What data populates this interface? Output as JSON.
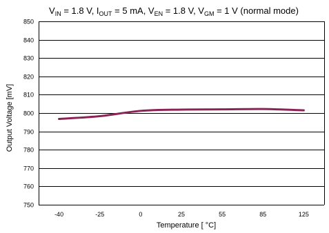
{
  "chart_data": {
    "type": "line",
    "title": {
      "parts": [
        {
          "text": "V",
          "sub": false
        },
        {
          "text": "IN",
          "sub": true
        },
        {
          "text": " = 1.8 V, I",
          "sub": false
        },
        {
          "text": "OUT",
          "sub": true
        },
        {
          "text": " = 5 mA, V",
          "sub": false
        },
        {
          "text": "EN",
          "sub": true
        },
        {
          "text": " = 1.8 V, V",
          "sub": false
        },
        {
          "text": "GM",
          "sub": true
        },
        {
          "text": " =  1 V (normal mode)",
          "sub": false
        }
      ]
    },
    "xlabel": "Temperature [ °C]",
    "ylabel": "Output Voltage [mV]",
    "categories": [
      "-40",
      "-25",
      "0",
      "25",
      "55",
      "85",
      "125"
    ],
    "ylim": [
      750,
      850
    ],
    "yticks": [
      750,
      760,
      770,
      780,
      790,
      800,
      810,
      820,
      830,
      840,
      850
    ],
    "grid": true,
    "series": [
      {
        "color": "#8b2356",
        "values": [
          796.8,
          798.3,
          801.2,
          801.9,
          802.0,
          802.2,
          801.5
        ]
      }
    ]
  }
}
